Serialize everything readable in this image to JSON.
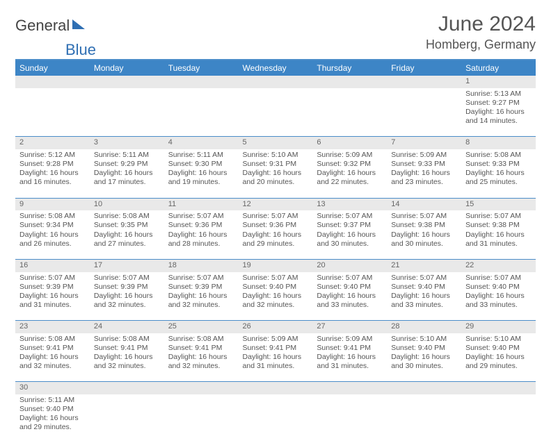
{
  "brand": {
    "text_dark": "General",
    "text_blue": "Blue"
  },
  "title": "June 2024",
  "location": "Homberg, Germany",
  "colors": {
    "header_bg": "#3d85c6",
    "rule": "#4a8cc9",
    "daynum_bg": "#e9e9e9",
    "text": "#555555",
    "brand_blue": "#2f6fb3"
  },
  "weekdays": [
    "Sunday",
    "Monday",
    "Tuesday",
    "Wednesday",
    "Thursday",
    "Friday",
    "Saturday"
  ],
  "weeks": [
    {
      "nums": [
        "",
        "",
        "",
        "",
        "",
        "",
        "1"
      ],
      "cells": [
        null,
        null,
        null,
        null,
        null,
        null,
        {
          "sunrise": "5:13 AM",
          "sunset": "9:27 PM",
          "daylight_a": "Daylight: 16 hours",
          "daylight_b": "and 14 minutes."
        }
      ]
    },
    {
      "nums": [
        "2",
        "3",
        "4",
        "5",
        "6",
        "7",
        "8"
      ],
      "cells": [
        {
          "sunrise": "5:12 AM",
          "sunset": "9:28 PM",
          "daylight_a": "Daylight: 16 hours",
          "daylight_b": "and 16 minutes."
        },
        {
          "sunrise": "5:11 AM",
          "sunset": "9:29 PM",
          "daylight_a": "Daylight: 16 hours",
          "daylight_b": "and 17 minutes."
        },
        {
          "sunrise": "5:11 AM",
          "sunset": "9:30 PM",
          "daylight_a": "Daylight: 16 hours",
          "daylight_b": "and 19 minutes."
        },
        {
          "sunrise": "5:10 AM",
          "sunset": "9:31 PM",
          "daylight_a": "Daylight: 16 hours",
          "daylight_b": "and 20 minutes."
        },
        {
          "sunrise": "5:09 AM",
          "sunset": "9:32 PM",
          "daylight_a": "Daylight: 16 hours",
          "daylight_b": "and 22 minutes."
        },
        {
          "sunrise": "5:09 AM",
          "sunset": "9:33 PM",
          "daylight_a": "Daylight: 16 hours",
          "daylight_b": "and 23 minutes."
        },
        {
          "sunrise": "5:08 AM",
          "sunset": "9:33 PM",
          "daylight_a": "Daylight: 16 hours",
          "daylight_b": "and 25 minutes."
        }
      ]
    },
    {
      "nums": [
        "9",
        "10",
        "11",
        "12",
        "13",
        "14",
        "15"
      ],
      "cells": [
        {
          "sunrise": "5:08 AM",
          "sunset": "9:34 PM",
          "daylight_a": "Daylight: 16 hours",
          "daylight_b": "and 26 minutes."
        },
        {
          "sunrise": "5:08 AM",
          "sunset": "9:35 PM",
          "daylight_a": "Daylight: 16 hours",
          "daylight_b": "and 27 minutes."
        },
        {
          "sunrise": "5:07 AM",
          "sunset": "9:36 PM",
          "daylight_a": "Daylight: 16 hours",
          "daylight_b": "and 28 minutes."
        },
        {
          "sunrise": "5:07 AM",
          "sunset": "9:36 PM",
          "daylight_a": "Daylight: 16 hours",
          "daylight_b": "and 29 minutes."
        },
        {
          "sunrise": "5:07 AM",
          "sunset": "9:37 PM",
          "daylight_a": "Daylight: 16 hours",
          "daylight_b": "and 30 minutes."
        },
        {
          "sunrise": "5:07 AM",
          "sunset": "9:38 PM",
          "daylight_a": "Daylight: 16 hours",
          "daylight_b": "and 30 minutes."
        },
        {
          "sunrise": "5:07 AM",
          "sunset": "9:38 PM",
          "daylight_a": "Daylight: 16 hours",
          "daylight_b": "and 31 minutes."
        }
      ]
    },
    {
      "nums": [
        "16",
        "17",
        "18",
        "19",
        "20",
        "21",
        "22"
      ],
      "cells": [
        {
          "sunrise": "5:07 AM",
          "sunset": "9:39 PM",
          "daylight_a": "Daylight: 16 hours",
          "daylight_b": "and 31 minutes."
        },
        {
          "sunrise": "5:07 AM",
          "sunset": "9:39 PM",
          "daylight_a": "Daylight: 16 hours",
          "daylight_b": "and 32 minutes."
        },
        {
          "sunrise": "5:07 AM",
          "sunset": "9:39 PM",
          "daylight_a": "Daylight: 16 hours",
          "daylight_b": "and 32 minutes."
        },
        {
          "sunrise": "5:07 AM",
          "sunset": "9:40 PM",
          "daylight_a": "Daylight: 16 hours",
          "daylight_b": "and 32 minutes."
        },
        {
          "sunrise": "5:07 AM",
          "sunset": "9:40 PM",
          "daylight_a": "Daylight: 16 hours",
          "daylight_b": "and 33 minutes."
        },
        {
          "sunrise": "5:07 AM",
          "sunset": "9:40 PM",
          "daylight_a": "Daylight: 16 hours",
          "daylight_b": "and 33 minutes."
        },
        {
          "sunrise": "5:07 AM",
          "sunset": "9:40 PM",
          "daylight_a": "Daylight: 16 hours",
          "daylight_b": "and 33 minutes."
        }
      ]
    },
    {
      "nums": [
        "23",
        "24",
        "25",
        "26",
        "27",
        "28",
        "29"
      ],
      "cells": [
        {
          "sunrise": "5:08 AM",
          "sunset": "9:41 PM",
          "daylight_a": "Daylight: 16 hours",
          "daylight_b": "and 32 minutes."
        },
        {
          "sunrise": "5:08 AM",
          "sunset": "9:41 PM",
          "daylight_a": "Daylight: 16 hours",
          "daylight_b": "and 32 minutes."
        },
        {
          "sunrise": "5:08 AM",
          "sunset": "9:41 PM",
          "daylight_a": "Daylight: 16 hours",
          "daylight_b": "and 32 minutes."
        },
        {
          "sunrise": "5:09 AM",
          "sunset": "9:41 PM",
          "daylight_a": "Daylight: 16 hours",
          "daylight_b": "and 31 minutes."
        },
        {
          "sunrise": "5:09 AM",
          "sunset": "9:41 PM",
          "daylight_a": "Daylight: 16 hours",
          "daylight_b": "and 31 minutes."
        },
        {
          "sunrise": "5:10 AM",
          "sunset": "9:40 PM",
          "daylight_a": "Daylight: 16 hours",
          "daylight_b": "and 30 minutes."
        },
        {
          "sunrise": "5:10 AM",
          "sunset": "9:40 PM",
          "daylight_a": "Daylight: 16 hours",
          "daylight_b": "and 29 minutes."
        }
      ]
    },
    {
      "nums": [
        "30",
        "",
        "",
        "",
        "",
        "",
        ""
      ],
      "cells": [
        {
          "sunrise": "5:11 AM",
          "sunset": "9:40 PM",
          "daylight_a": "Daylight: 16 hours",
          "daylight_b": "and 29 minutes."
        },
        null,
        null,
        null,
        null,
        null,
        null
      ]
    }
  ],
  "labels": {
    "sunrise_prefix": "Sunrise: ",
    "sunset_prefix": "Sunset: "
  }
}
